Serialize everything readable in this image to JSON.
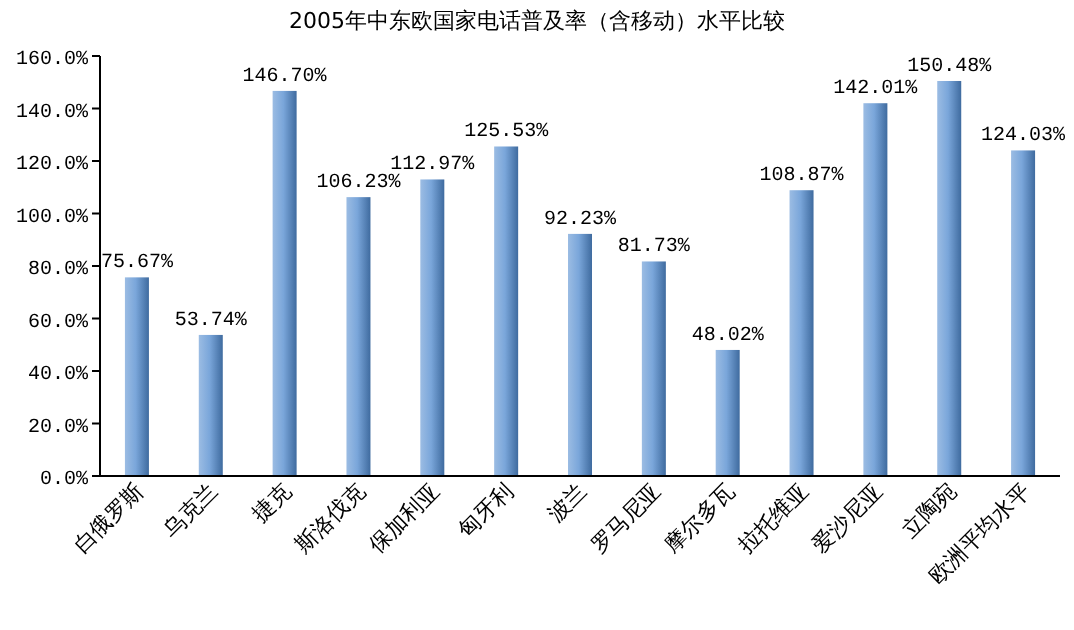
{
  "chart_data": {
    "type": "bar",
    "title": "2005年中东欧国家电话普及率（含移动）水平比较",
    "categories": [
      "白俄罗斯",
      "乌克兰",
      "捷克",
      "斯洛伐克",
      "保加利亚",
      "匈牙利",
      "波兰",
      "罗马尼亚",
      "摩尔多瓦",
      "拉托维亚",
      "爱沙尼亚",
      "立陶宛",
      "欧洲平均水平"
    ],
    "values": [
      75.67,
      53.74,
      146.7,
      106.23,
      112.97,
      125.53,
      92.23,
      81.73,
      48.02,
      108.87,
      142.01,
      150.48,
      124.03
    ],
    "value_labels": [
      "75.67%",
      "53.74%",
      "146.70%",
      "106.23%",
      "112.97%",
      "125.53%",
      "92.23%",
      "81.73%",
      "48.02%",
      "108.87%",
      "142.01%",
      "150.48%",
      "124.03%"
    ],
    "color": "#7aa6da",
    "ylim": [
      0,
      160
    ],
    "yticks": [
      {
        "value": 0,
        "label": "0.0%"
      },
      {
        "value": 20,
        "label": "20.0%"
      },
      {
        "value": 40,
        "label": "40.0%"
      },
      {
        "value": 60,
        "label": "60.0%"
      },
      {
        "value": 80,
        "label": "80.0%"
      },
      {
        "value": 100,
        "label": "100.0%"
      },
      {
        "value": 120,
        "label": "120.0%"
      },
      {
        "value": 140,
        "label": "140.0%"
      },
      {
        "value": 160,
        "label": "160.0%"
      }
    ],
    "grid": false
  }
}
